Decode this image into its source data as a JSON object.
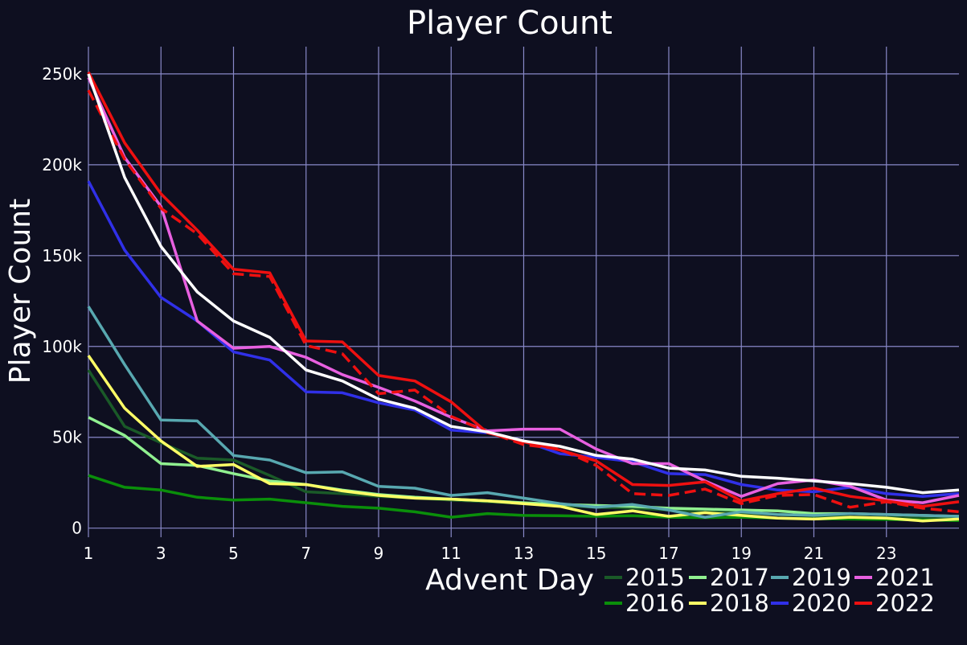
{
  "chart_data": {
    "type": "line",
    "title": "Player Count",
    "xlabel": "Advent Day",
    "ylabel": "Player Count",
    "xlim": [
      1,
      25
    ],
    "ylim": [
      -5000,
      265000
    ],
    "grid": true,
    "legend_position": "bottom-right",
    "background": "#0e0f20",
    "x_ticks": [
      1,
      3,
      5,
      7,
      9,
      11,
      13,
      15,
      17,
      19,
      21,
      23
    ],
    "x_tick_labels": [
      "1",
      "3",
      "5",
      "7",
      "9",
      "11",
      "13",
      "15",
      "17",
      "19",
      "21",
      "23"
    ],
    "y_ticks": [
      0,
      50000,
      100000,
      150000,
      200000,
      250000
    ],
    "y_tick_labels": [
      "0",
      "50k",
      "100k",
      "150k",
      "200k",
      "250k"
    ],
    "x": [
      1,
      2,
      3,
      4,
      5,
      6,
      7,
      8,
      9,
      10,
      11,
      12,
      13,
      14,
      15,
      16,
      17,
      18,
      19,
      20,
      21,
      22,
      23,
      24,
      25
    ],
    "series": [
      {
        "name": "2015",
        "color": "#1a5a28",
        "dash": false,
        "legend": true,
        "values": [
          87000,
          56000,
          47000,
          38500,
          37500,
          29000,
          20000,
          19000,
          17500,
          16500,
          15500,
          14500,
          13500,
          12500,
          11500,
          11000,
          10000,
          9200,
          8500,
          7500,
          6800,
          6200,
          5800,
          5500,
          5000
        ]
      },
      {
        "name": "2016",
        "color": "#0a8f0a",
        "dash": false,
        "legend": true,
        "values": [
          29000,
          22500,
          21000,
          17000,
          15500,
          16000,
          14000,
          12000,
          11000,
          9000,
          6000,
          8000,
          7000,
          6800,
          6500,
          6800,
          6000,
          5800,
          6000,
          5500,
          5200,
          5000,
          4800,
          4500,
          4200
        ]
      },
      {
        "name": "2017",
        "color": "#90f090",
        "dash": false,
        "legend": true,
        "values": [
          61000,
          51000,
          35500,
          34500,
          30000,
          26000,
          24000,
          21000,
          18500,
          17000,
          16000,
          15000,
          14000,
          13000,
          12500,
          12000,
          11000,
          10500,
          10000,
          9500,
          8000,
          8000,
          7500,
          7000,
          6500
        ]
      },
      {
        "name": "2018",
        "color": "#ffff66",
        "dash": false,
        "legend": true,
        "values": [
          95000,
          66000,
          48000,
          34000,
          35000,
          24500,
          24000,
          20500,
          18000,
          16500,
          16000,
          15000,
          13500,
          12000,
          7500,
          9500,
          6500,
          8500,
          7000,
          5500,
          5000,
          6000,
          5500,
          4000,
          5000
        ]
      },
      {
        "name": "2019",
        "color": "#58a8b0",
        "dash": false,
        "legend": true,
        "values": [
          122000,
          90000,
          59500,
          59000,
          40000,
          37500,
          30500,
          31000,
          23000,
          22000,
          18000,
          19500,
          16500,
          13500,
          11500,
          13000,
          10000,
          6000,
          9000,
          7500,
          7000,
          8000,
          7500,
          7000,
          6500
        ]
      },
      {
        "name": "2020",
        "color": "#3030e8",
        "dash": false,
        "legend": true,
        "values": [
          191000,
          153000,
          127000,
          114000,
          97000,
          92500,
          75000,
          74500,
          69000,
          65000,
          54000,
          52500,
          48000,
          41000,
          39000,
          36500,
          30000,
          29500,
          24000,
          21000,
          20000,
          22500,
          19000,
          17500,
          19000
        ]
      },
      {
        "name": "2021",
        "color": "#e860e0",
        "dash": false,
        "legend": true,
        "values": [
          248000,
          204000,
          177000,
          114000,
          99000,
          100000,
          94000,
          84500,
          77500,
          70000,
          61000,
          53500,
          54500,
          54500,
          43500,
          35500,
          35500,
          26000,
          17500,
          24500,
          26500,
          23000,
          15500,
          14000,
          18000
        ]
      },
      {
        "name": "2022",
        "color": "#ee1010",
        "dash": false,
        "legend": true,
        "values": [
          251000,
          212000,
          184000,
          164000,
          142500,
          140500,
          103000,
          102500,
          84000,
          81000,
          69500,
          52500,
          47500,
          43000,
          37000,
          24000,
          23500,
          25500,
          15000,
          19000,
          22000,
          17500,
          15000,
          12000,
          14500
        ]
      },
      {
        "name": "",
        "color": "#ee1010",
        "dash": true,
        "legend": false,
        "values": [
          241000,
          203000,
          176000,
          162000,
          140000,
          138500,
          100500,
          96000,
          74000,
          76000,
          61500,
          53000,
          46000,
          43500,
          34500,
          19000,
          18000,
          21500,
          13500,
          18000,
          18500,
          11500,
          14500,
          11000,
          9000
        ]
      },
      {
        "name": "",
        "color": "#ffffff",
        "dash": false,
        "legend": false,
        "values": [
          250000,
          193000,
          155000,
          130000,
          114000,
          105000,
          87000,
          81000,
          71000,
          66000,
          56000,
          53000,
          48000,
          45000,
          40000,
          38000,
          33000,
          32000,
          28500,
          27500,
          26000,
          24500,
          22500,
          19500,
          21000
        ]
      }
    ]
  }
}
